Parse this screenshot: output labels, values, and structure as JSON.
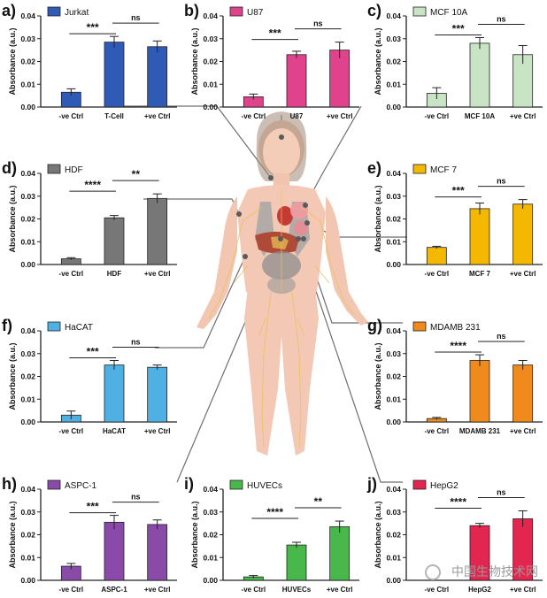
{
  "figure": {
    "watermark": "中国生物技术网",
    "body_label": "female body illustration"
  },
  "chart_data": [
    {
      "panel_label": "a)",
      "type": "bar",
      "legend": "Jurkat",
      "color": "#2f5bb7",
      "categories": [
        "-ve Ctrl",
        "T-Cell",
        "+ve Ctrl"
      ],
      "values": [
        0.0065,
        0.0285,
        0.0265
      ],
      "errors": [
        0.0015,
        0.0025,
        0.0025
      ],
      "ylabel": "Absorbance (a.u.)",
      "ylim": [
        0,
        0.04
      ],
      "yticks": [
        "0.00",
        "0.01",
        "0.02",
        "0.03",
        "0.04"
      ],
      "significance": [
        {
          "from": 0,
          "to": 1,
          "label": "***"
        },
        {
          "from": 1,
          "to": 2,
          "label": "ns"
        }
      ]
    },
    {
      "panel_label": "b)",
      "type": "bar",
      "legend": "U87",
      "color": "#e0438c",
      "categories": [
        "-ve Ctrl",
        "U87",
        "+ve Ctrl"
      ],
      "values": [
        0.0045,
        0.023,
        0.025
      ],
      "errors": [
        0.0012,
        0.0015,
        0.0035
      ],
      "ylabel": "Absorbance (a.u.)",
      "ylim": [
        0,
        0.04
      ],
      "yticks": [
        "0.00",
        "0.01",
        "0.02",
        "0.03",
        "0.04"
      ],
      "significance": [
        {
          "from": 0,
          "to": 1,
          "label": "***"
        },
        {
          "from": 1,
          "to": 2,
          "label": "ns"
        }
      ]
    },
    {
      "panel_label": "c)",
      "type": "bar",
      "legend": "MCF 10A",
      "color": "#c9e3c5",
      "categories": [
        "-ve Ctrl",
        "MCF 10A",
        "+ve Ctrl"
      ],
      "values": [
        0.006,
        0.028,
        0.023
      ],
      "errors": [
        0.0025,
        0.0025,
        0.004
      ],
      "ylabel": "Absorbance (a.u.)",
      "ylim": [
        0,
        0.04
      ],
      "yticks": [
        "0.00",
        "0.01",
        "0.02",
        "0.03",
        "0.04"
      ],
      "significance": [
        {
          "from": 0,
          "to": 1,
          "label": "***"
        },
        {
          "from": 1,
          "to": 2,
          "label": "ns"
        }
      ]
    },
    {
      "panel_label": "d)",
      "type": "bar",
      "legend": "HDF",
      "color": "#777777",
      "categories": [
        "-ve Ctrl",
        "HDF",
        "+ve Ctrl"
      ],
      "values": [
        0.0025,
        0.0205,
        0.029
      ],
      "errors": [
        0.0005,
        0.001,
        0.002
      ],
      "ylabel": "Absorbance (a.u.)",
      "ylim": [
        0,
        0.04
      ],
      "yticks": [
        "0.00",
        "0.01",
        "0.02",
        "0.03",
        "0.04"
      ],
      "significance": [
        {
          "from": 0,
          "to": 1,
          "label": "****"
        },
        {
          "from": 1,
          "to": 2,
          "label": "**"
        }
      ]
    },
    {
      "panel_label": "e)",
      "type": "bar",
      "legend": "MCF 7",
      "color": "#f5b800",
      "categories": [
        "-ve Ctrl",
        "MCF 7",
        "+ve Ctrl"
      ],
      "values": [
        0.0075,
        0.0245,
        0.0265
      ],
      "errors": [
        0.0005,
        0.0025,
        0.002
      ],
      "ylabel": "Absorbance (a.u.)",
      "ylim": [
        0,
        0.04
      ],
      "yticks": [
        "0.00",
        "0.01",
        "0.02",
        "0.03",
        "0.04"
      ],
      "significance": [
        {
          "from": 0,
          "to": 1,
          "label": "***"
        },
        {
          "from": 1,
          "to": 2,
          "label": "ns"
        }
      ]
    },
    {
      "panel_label": "f)",
      "type": "bar",
      "legend": "HaCAT",
      "color": "#4fb0e3",
      "categories": [
        "-ve Ctrl",
        "HaCAT",
        "+ve Ctrl"
      ],
      "values": [
        0.003,
        0.025,
        0.024
      ],
      "errors": [
        0.0018,
        0.002,
        0.001
      ],
      "ylabel": "Absorbance (a.u.)",
      "ylim": [
        0,
        0.04
      ],
      "yticks": [
        "0.00",
        "0.01",
        "0.02",
        "0.03",
        "0.04"
      ],
      "significance": [
        {
          "from": 0,
          "to": 1,
          "label": "***"
        },
        {
          "from": 1,
          "to": 2,
          "label": "ns"
        }
      ]
    },
    {
      "panel_label": "g)",
      "type": "bar",
      "legend": "MDAMB 231",
      "color": "#f08a1c",
      "categories": [
        "-ve Ctrl",
        "MDAMB 231",
        "+ve Ctrl"
      ],
      "values": [
        0.0015,
        0.027,
        0.025
      ],
      "errors": [
        0.0005,
        0.0025,
        0.002
      ],
      "ylabel": "Absorbance (a.u.)",
      "ylim": [
        0,
        0.04
      ],
      "yticks": [
        "0.00",
        "0.01",
        "0.02",
        "0.03",
        "0.04"
      ],
      "significance": [
        {
          "from": 0,
          "to": 1,
          "label": "****"
        },
        {
          "from": 1,
          "to": 2,
          "label": "ns"
        }
      ]
    },
    {
      "panel_label": "h)",
      "type": "bar",
      "legend": "ASPC-1",
      "color": "#8a4aa8",
      "categories": [
        "-ve Ctrl",
        "ASPC-1",
        "+ve Ctrl"
      ],
      "values": [
        0.0062,
        0.0255,
        0.0245
      ],
      "errors": [
        0.0012,
        0.003,
        0.002
      ],
      "ylabel": "Absorbance (a.u.)",
      "ylim": [
        0,
        0.04
      ],
      "yticks": [
        "0.00",
        "0.01",
        "0.02",
        "0.03",
        "0.04"
      ],
      "significance": [
        {
          "from": 0,
          "to": 1,
          "label": "***"
        },
        {
          "from": 1,
          "to": 2,
          "label": "ns"
        }
      ]
    },
    {
      "panel_label": "i)",
      "type": "bar",
      "legend": "HUVECs",
      "color": "#49b84a",
      "categories": [
        "-ve Ctrl",
        "HUVECs",
        "+ve Ctrl"
      ],
      "values": [
        0.0015,
        0.0155,
        0.0235
      ],
      "errors": [
        0.0006,
        0.0012,
        0.0025
      ],
      "ylabel": "Absorbance (a.u.)",
      "ylim": [
        0,
        0.04
      ],
      "yticks": [
        "0.00",
        "0.01",
        "0.02",
        "0.03",
        "0.04"
      ],
      "significance": [
        {
          "from": 0,
          "to": 1,
          "label": "****"
        },
        {
          "from": 1,
          "to": 2,
          "label": "**"
        }
      ]
    },
    {
      "panel_label": "j)",
      "type": "bar",
      "legend": "HepG2",
      "color": "#e3264f",
      "categories": [
        "-ve Ctrl",
        "HepG2",
        "+ve Ctrl"
      ],
      "values": [
        0.0,
        0.024,
        0.027
      ],
      "errors": [
        0.0,
        0.001,
        0.0035
      ],
      "ylabel": "Absorbance (a.u.)",
      "ylim": [
        0,
        0.04
      ],
      "yticks": [
        "0.00",
        "0.01",
        "0.02",
        "0.03",
        "0.04"
      ],
      "significance": [
        {
          "from": 0,
          "to": 1,
          "label": "****"
        },
        {
          "from": 1,
          "to": 2,
          "label": "ns"
        }
      ]
    }
  ]
}
